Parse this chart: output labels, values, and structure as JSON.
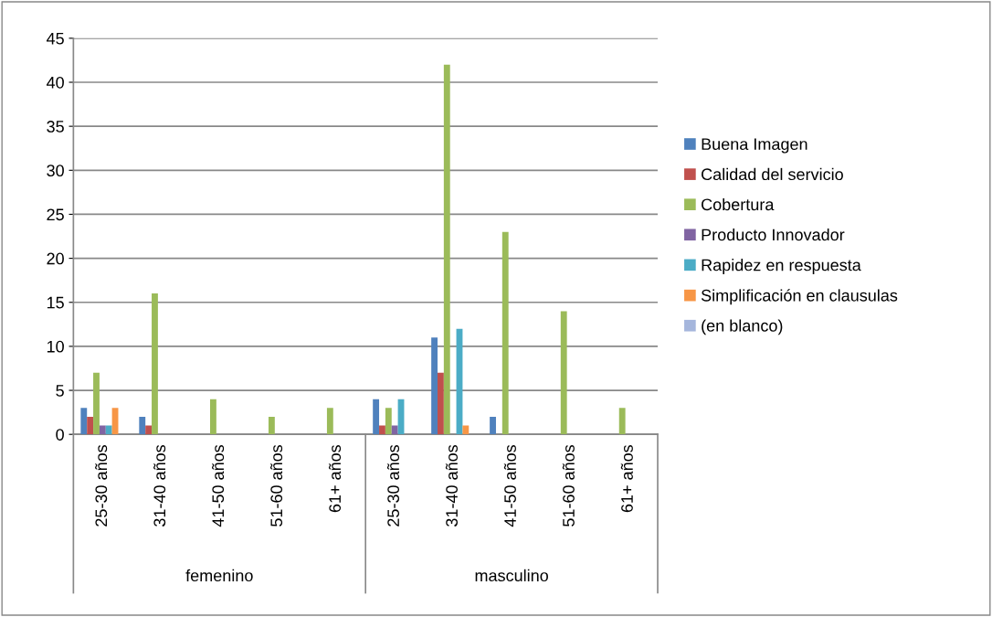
{
  "chart_data": {
    "type": "bar",
    "categories": [
      "25-30 años",
      "31-40 años",
      "41-50 años",
      "51-60 años",
      "61+ años",
      "25-30 años",
      "31-40 años",
      "41-50 años",
      "51-60 años",
      "61+ años"
    ],
    "annotations": [
      "femenino",
      "masculino"
    ],
    "series": [
      {
        "name": "Buena Imagen",
        "color": "#4f81bd",
        "values": [
          3,
          2,
          null,
          null,
          null,
          4,
          11,
          2,
          null,
          null
        ]
      },
      {
        "name": "Calidad del servicio",
        "color": "#c0504d",
        "values": [
          2,
          1,
          null,
          null,
          null,
          1,
          7,
          null,
          null,
          null
        ]
      },
      {
        "name": "Cobertura",
        "color": "#9bbb59",
        "values": [
          7,
          16,
          4,
          2,
          3,
          3,
          42,
          23,
          14,
          3
        ]
      },
      {
        "name": "Producto Innovador",
        "color": "#8064a2",
        "values": [
          1,
          null,
          null,
          null,
          null,
          1,
          null,
          null,
          null,
          null
        ]
      },
      {
        "name": "Rapidez en respuesta",
        "color": "#4bacc6",
        "values": [
          1,
          null,
          null,
          null,
          null,
          4,
          12,
          null,
          null,
          null
        ]
      },
      {
        "name": "Simplificación en clausulas",
        "color": "#f79646",
        "values": [
          3,
          null,
          null,
          null,
          null,
          null,
          1,
          null,
          null,
          null
        ]
      },
      {
        "name": "(en blanco)",
        "color": "#a5b6dc",
        "values": [
          null,
          null,
          null,
          null,
          null,
          null,
          null,
          null,
          null,
          null
        ]
      }
    ],
    "ylim": [
      0,
      45
    ],
    "yticks": [
      0,
      5,
      10,
      15,
      20,
      25,
      30,
      35,
      40,
      45
    ],
    "grid": "y",
    "legend": "right"
  }
}
